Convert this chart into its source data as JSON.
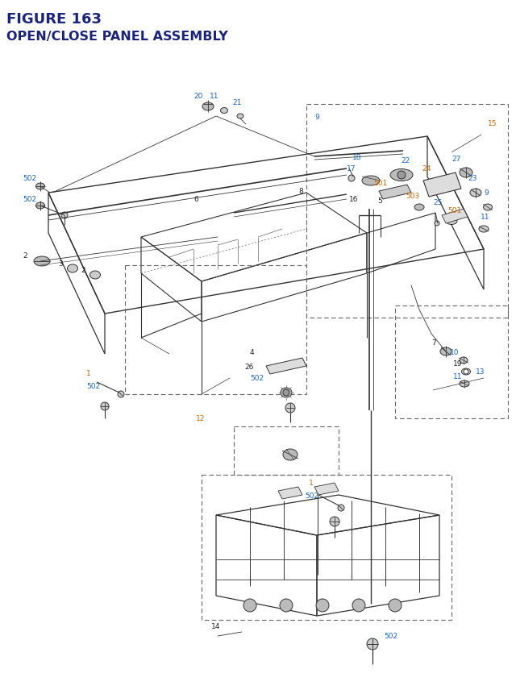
{
  "title_line1": "FIGURE 163",
  "title_line2": "OPEN/CLOSE PANEL ASSEMBLY",
  "title_color": "#1a237e",
  "bg_color": "#ffffff",
  "fig_width": 6.4,
  "fig_height": 8.62,
  "label_color_blue": "#1565c0",
  "label_color_orange": "#cc6600",
  "label_color_black": "#222222",
  "lw_main": 0.9,
  "lw_thin": 0.6,
  "c_main": "#333333",
  "c_dashed": "#666666"
}
